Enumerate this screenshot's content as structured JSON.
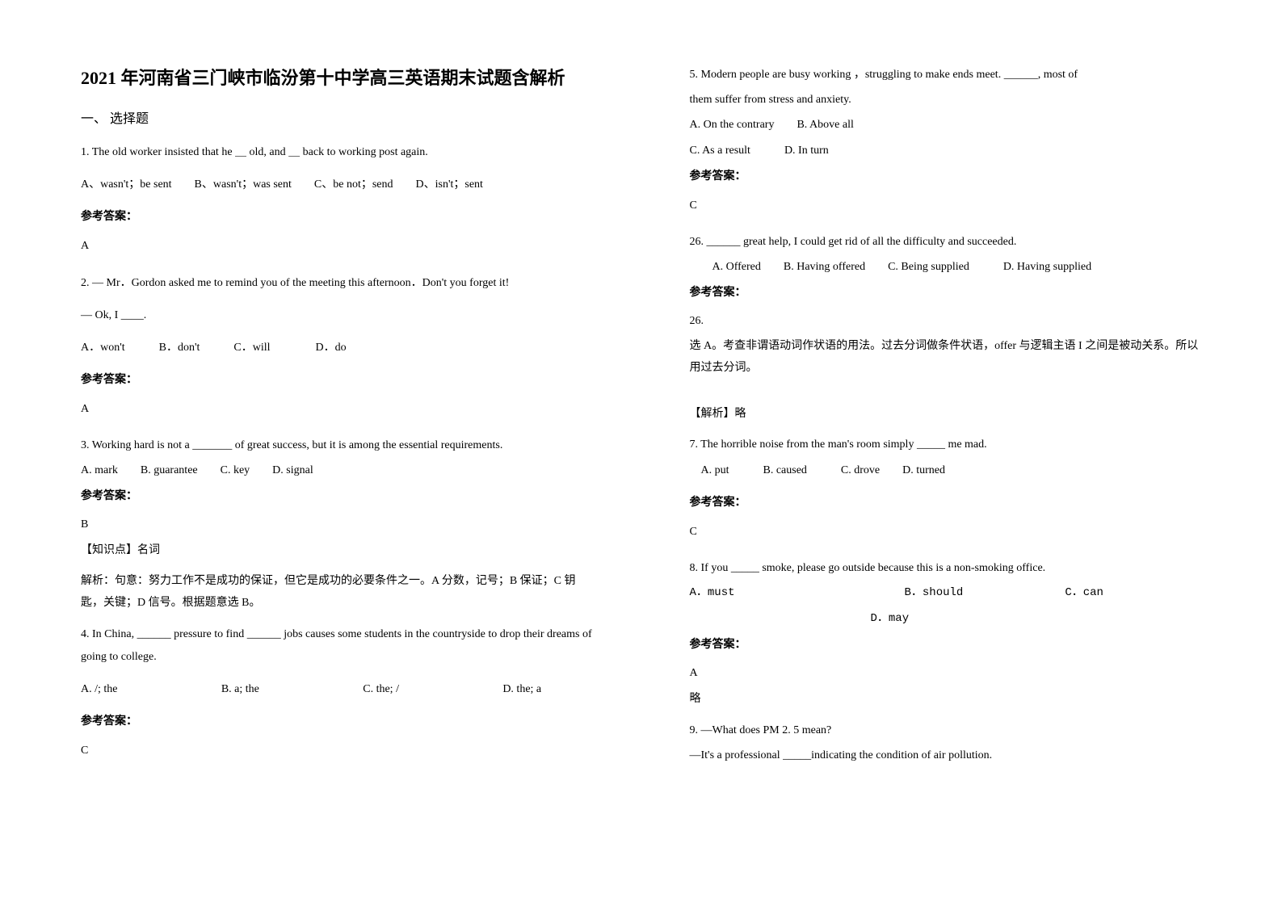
{
  "title": "2021 年河南省三门峡市临汾第十中学高三英语期末试题含解析",
  "section1_heading": "一、 选择题",
  "q1": {
    "text": "1. The old worker insisted that he ＿ old, and ＿ back to working post again.",
    "options": "A、wasn't；be sent　　B、wasn't；was sent　　C、be not；send　　D、isn't；sent",
    "answer_label": "参考答案：",
    "answer": "A"
  },
  "q2": {
    "line1": "2. — Mr．Gordon asked me to remind you of the meeting this afternoon．Don't you forget it!",
    "line2": "— Ok, I ____.",
    "options": "A．won't　　　B．don't　　　C．will　　　　D．do",
    "answer_label": "参考答案：",
    "answer": "A"
  },
  "q3": {
    "text": "3. Working hard is not a _______ of great success, but it is among the essential requirements.",
    "options": "A. mark　　B. guarantee　　C. key　　D. signal",
    "answer_label": "参考答案：",
    "answer": "B",
    "knowledge": "【知识点】名词",
    "explanation": "解析：句意：努力工作不是成功的保证，但它是成功的必要条件之一。A 分数，记号；B 保证；C 钥匙，关键；D 信号。根据题意选 B。"
  },
  "q4": {
    "text": "4. In China, ______ pressure to find ______ jobs causes some students in the countryside to drop their dreams of going to college.",
    "opt_a": "A. /; the",
    "opt_b": "B. a; the",
    "opt_c": "C. the; /",
    "opt_d": "D. the; a",
    "answer_label": "参考答案：",
    "answer": "C"
  },
  "q5": {
    "line1": "5. Modern people are busy working ，struggling to make ends meet. ______, most of",
    "line2": "them suffer from stress and anxiety.",
    "options1": "A. On the contrary　　B. Above all",
    "options2": "C. As a result　　　D. In turn",
    "answer_label": "参考答案：",
    "answer": "C"
  },
  "q26": {
    "text": "26. ______ great help, I could get rid of all the difficulty and succeeded.",
    "options": "　　A. Offered　　B. Having offered　　C. Being supplied　　　D. Having supplied",
    "answer_label": "参考答案：",
    "answer": "26.",
    "explanation": "选 A。考查非谓语动词作状语的用法。过去分词做条件状语，offer 与逻辑主语 I 之间是被动关系。所以用过去分词。",
    "analysis": "【解析】略"
  },
  "q7": {
    "text": "7. The horrible noise from the man's room simply _____ me mad.",
    "options": "　A. put　　　B. caused　　　C. drove　　D. turned",
    "answer_label": "参考答案：",
    "answer": "C"
  },
  "q8": {
    "text": "8. If you _____ smoke, please go outside because this is a non-smoking office.",
    "options_line1": "A．must　　　　　　　　　　　　　　　B．should　　　　　　　　　C．can",
    "options_line2": "　　　　　　　　　　　　　　　　D．may",
    "answer_label": "参考答案：",
    "answer": "A",
    "note": "略"
  },
  "q9": {
    "line1": "9. —What does PM 2. 5 mean?",
    "line2": "—It's a professional _____indicating the condition of air pollution."
  }
}
